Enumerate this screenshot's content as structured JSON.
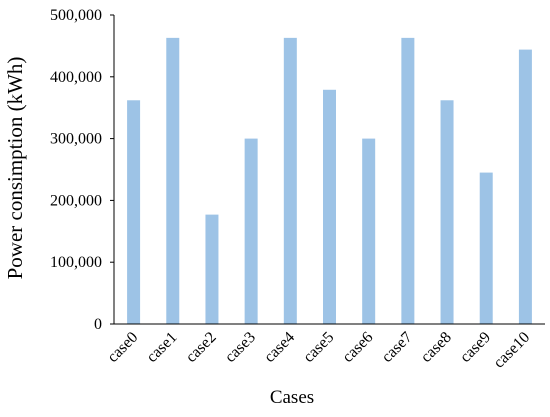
{
  "chart_data": {
    "type": "bar",
    "title": "",
    "xlabel": "Cases",
    "ylabel": "Power consimption  (kWh)",
    "categories": [
      "case0",
      "case1",
      "case2",
      "case3",
      "case4",
      "case5",
      "case6",
      "case7",
      "case8",
      "case9",
      "case10"
    ],
    "values": [
      362000,
      463000,
      177000,
      300000,
      463000,
      379000,
      300000,
      463000,
      362000,
      245000,
      444000
    ],
    "ylim": [
      0,
      500000
    ],
    "yticks": [
      0,
      100000,
      200000,
      300000,
      400000,
      500000
    ],
    "ytick_labels": [
      "0",
      "100,000",
      "200,000",
      "300,000",
      "400,000",
      "500,000"
    ],
    "grid": false,
    "legend": "none",
    "bar_color": "#9DC3E6",
    "axis_color": "#000000"
  }
}
